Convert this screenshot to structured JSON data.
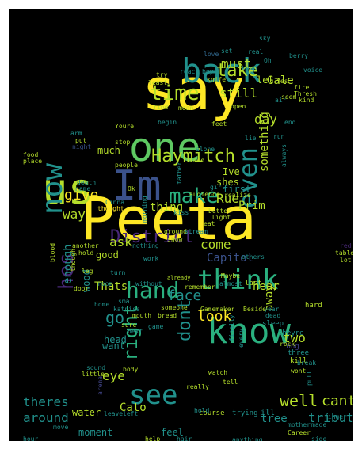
{
  "palette": {
    "yellow": "#fde725",
    "lime": "#b5de2b",
    "green": "#5ec962",
    "teal": "#21918c",
    "cyan": "#2ab07f",
    "blue": "#31688e",
    "indigo": "#3b528b",
    "purple": "#482878",
    "dark": "#440154",
    "gray": "#414487"
  },
  "words": {
    "peeta": "Peeta",
    "say": "say",
    "one": "one",
    "know": "know",
    "im": "Im",
    "us": "us",
    "back": "back",
    "now": "now",
    "see": "see",
    "think": "think",
    "hand": "hand",
    "make": "make",
    "haymitch": "Haymitch",
    "district": "District",
    "time": "time",
    "even": "even",
    "take": "take",
    "right": "right",
    "hes": "hes",
    "dont": "dont",
    "give": "give",
    "well": "well",
    "cant": "cant",
    "theres": "theres",
    "around": "around",
    "tribute": "tribute",
    "look": "look",
    "face": "face",
    "come": "come",
    "day": "day",
    "go": "go",
    "ask": "ask",
    "rue": "Rue",
    "must": "must",
    "still": "still",
    "gale": "Gale",
    "prim": "Prim",
    "let": "let",
    "way": "way",
    "thats": "Thats",
    "eye": "eye",
    "cato": "Cato",
    "two": "two",
    "tree": "tree",
    "water": "water",
    "moment": "moment",
    "feel": "feel",
    "first": "first",
    "thing": "thing",
    "good": "good",
    "enough": "enough",
    "capitol": "Capitol",
    "hear": "hear",
    "away": "away",
    "head": "head",
    "want": "want",
    "something": "something",
    "ive": "Ive",
    "shes": "shes",
    "much": "much",
    "wood": "wood",
    "help": "help",
    "hair": "hair",
    "course": "course",
    "trying": "trying",
    "ill": "ill",
    "anything": "anything",
    "finger": "finger",
    "career": "Career",
    "side": "side",
    "hour": "hour",
    "move": "move",
    "leave": "leave",
    "left": "left",
    "hold": "hold",
    "mother": "mother",
    "made": "made",
    "kill": "kill",
    "three": "three",
    "long": "long",
    "theyre": "theyre",
    "sleep": "sleep",
    "year": "year",
    "hard": "hard",
    "last": "last",
    "almost": "almost",
    "maybe": "Maybe",
    "remember": "remember",
    "without": "without",
    "room": "room",
    "turn": "turn",
    "leg": "leg",
    "bread": "bread",
    "someone": "someone",
    "katniss": "katniss",
    "small": "small",
    "home": "home",
    "door": "door",
    "watch": "watch",
    "tell": "tell",
    "really": "really",
    "body": "body",
    "little": "little",
    "sound": "sound",
    "arena": "arena",
    "pull": "pull",
    "food": "food",
    "place": "place",
    "arm": "arm",
    "put": "put",
    "night": "night",
    "death": "death",
    "name": "name",
    "another": "another",
    "hold2": "hold",
    "blood": "blood",
    "though": "though",
    "thought": "thought",
    "cinna": "Cinna",
    "people": "people",
    "youre": "Youre",
    "stop": "stop",
    "find": "find",
    "begin": "begin",
    "mean": "mean",
    "open": "open",
    "seem": "seem",
    "least": "least",
    "try": "try",
    "knife": "knife",
    "reach": "reach",
    "boy": "boy",
    "fire": "fire",
    "thresh": "Thresh",
    "kind": "kind",
    "air": "air",
    "yes": "Yes",
    "voice": "voice",
    "sky": "sky",
    "set": "set",
    "real": "real",
    "love": "love",
    "keep": "keep",
    "alone": "alone",
    "need": "need",
    "feet": "feet",
    "better": "better",
    "light": "light",
    "realize": "realize",
    "father": "father",
    "audience": "audience",
    "girl": "girl",
    "morning": "morning",
    "ground": "ground",
    "stream": "stream",
    "show": "show",
    "work": "work",
    "eat": "eat",
    "others": "others",
    "already": "already",
    "gamemaker": "Gamemaker",
    "beside": "Beside",
    "table": "table",
    "lot": "lot",
    "red": "red",
    "dead": "dead",
    "rock": "rock",
    "every": "every",
    "finally": "finally",
    "next": "next",
    "nothing": "nothing",
    "end": "end",
    "lie": "lie",
    "run": "run",
    "always": "always",
    "kiss": "kiss",
    "sure": "sure",
    "game": "game",
    "break": "break",
    "mouth": "mouth",
    "ok": "Ok",
    "berry": "berry",
    "oh": "Oh",
    "wont": "wont"
  }
}
